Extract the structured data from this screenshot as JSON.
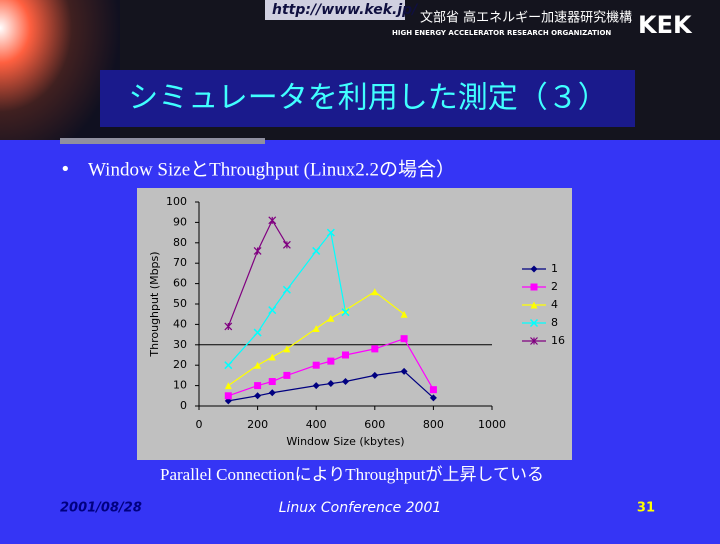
{
  "header": {
    "url": "http://www.kek.jp/",
    "org_jp": "文部省 高エネルギー加速器研究機構",
    "org_en": "HIGH ENERGY ACCELERATOR RESEARCH ORGANIZATION",
    "logo": "KEK"
  },
  "title": "シミュレータを利用した測定（３）",
  "bullet": "Window SizeとThroughput (Linux2.2の場合）",
  "chart_data": {
    "type": "line",
    "xlabel": "Window Size (kbytes)",
    "ylabel": "Throughput (Mbps)",
    "xlim": [
      0,
      1000
    ],
    "xticks": [
      0,
      200,
      400,
      600,
      800,
      1000
    ],
    "ylim": [
      0,
      100
    ],
    "yticks": [
      0,
      10,
      20,
      30,
      40,
      50,
      60,
      70,
      80,
      90,
      100
    ],
    "hline": 30,
    "legend": "right",
    "series": [
      {
        "name": "1",
        "color": "#000080",
        "marker": "diamond",
        "x": [
          100,
          200,
          250,
          400,
          450,
          500,
          600,
          700,
          800
        ],
        "values": [
          2.5,
          5,
          6.5,
          10,
          11,
          12,
          15,
          17,
          4
        ]
      },
      {
        "name": "2",
        "color": "#ff00ff",
        "marker": "square",
        "x": [
          100,
          200,
          250,
          300,
          400,
          450,
          500,
          600,
          700,
          800
        ],
        "values": [
          5,
          10,
          12,
          15,
          20,
          22,
          25,
          28,
          33,
          8
        ]
      },
      {
        "name": "4",
        "color": "#ffff00",
        "marker": "triangle",
        "x": [
          100,
          200,
          250,
          300,
          400,
          450,
          500,
          600,
          700
        ],
        "values": [
          10,
          20,
          24,
          28,
          38,
          43,
          47,
          56,
          45
        ]
      },
      {
        "name": "8",
        "color": "#00ffff",
        "marker": "x",
        "x": [
          100,
          200,
          250,
          300,
          400,
          450,
          500
        ],
        "values": [
          20,
          36,
          47,
          57,
          76,
          85,
          46
        ]
      },
      {
        "name": "16",
        "color": "#800080",
        "marker": "star",
        "x": [
          100,
          200,
          250,
          300
        ],
        "values": [
          39,
          76,
          91,
          79
        ]
      }
    ]
  },
  "caption": "Parallel ConnectionによりThroughputが上昇している",
  "footer": {
    "date": "2001/08/28",
    "event": "Linux Conference 2001",
    "page": "31"
  }
}
